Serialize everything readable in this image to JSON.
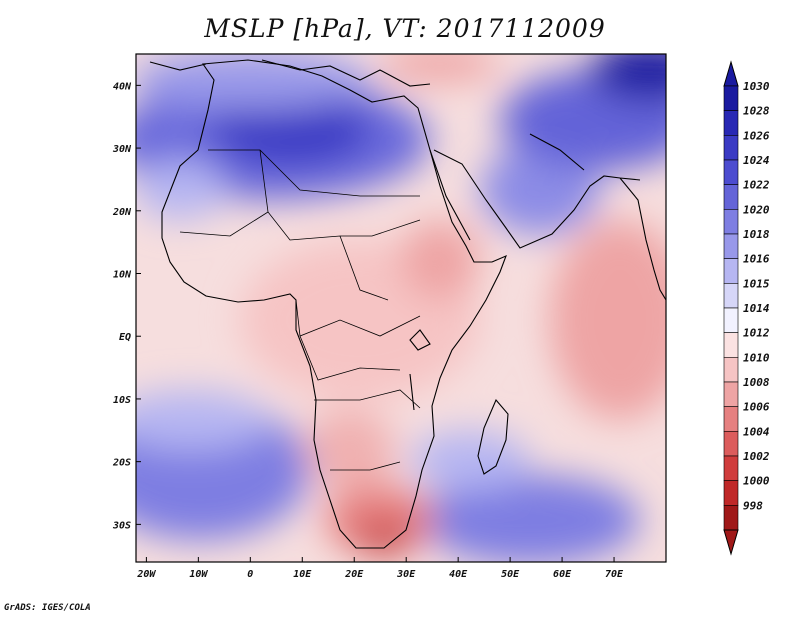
{
  "title": "MSLP [hPa], VT: 2017112009",
  "footer": "GrADS: IGES/COLA",
  "map": {
    "lon_range": [
      -22,
      80
    ],
    "lat_range": [
      -36,
      45
    ],
    "lat_labels": [
      "40N",
      "30N",
      "20N",
      "10N",
      "EQ",
      "10S",
      "20S",
      "30S"
    ],
    "lon_labels": [
      "20W",
      "10W",
      "0",
      "10E",
      "20E",
      "30E",
      "40E",
      "50E",
      "60E",
      "70E"
    ],
    "lat_values": [
      40,
      30,
      20,
      10,
      0,
      -10,
      -20,
      -30
    ],
    "lon_values": [
      -20,
      -10,
      0,
      10,
      20,
      30,
      40,
      50,
      60,
      70
    ]
  },
  "colorbar": {
    "levels": [
      "1030",
      "1028",
      "1026",
      "1024",
      "1022",
      "1020",
      "1018",
      "1016",
      "1015",
      "1014",
      "1012",
      "1010",
      "1008",
      "1006",
      "1004",
      "1002",
      "1000",
      "998"
    ],
    "colors": [
      "#1a1aa0",
      "#2828b4",
      "#3a3ac4",
      "#4c4cd0",
      "#6464d8",
      "#7e7ee2",
      "#9898ea",
      "#b6b6f2",
      "#d6d6f8",
      "#f2f2ff",
      "#fbe2e2",
      "#f6c4c4",
      "#eea4a4",
      "#e68080",
      "#dc5c5c",
      "#d03c3c",
      "#c02828",
      "#a01818"
    ]
  },
  "regions": [
    {
      "name": "high-north-africa",
      "lon": 0,
      "lat": 30,
      "value": 1026
    },
    {
      "name": "high-iran",
      "lon": 75,
      "lat": 43,
      "value": 1030
    },
    {
      "name": "high-south-atlantic",
      "lon": -10,
      "lat": -22,
      "value": 1022
    },
    {
      "name": "high-south-indian",
      "lon": 55,
      "lat": -30,
      "value": 1022
    },
    {
      "name": "low-central-africa",
      "lon": 25,
      "lat": 5,
      "value": 1010
    },
    {
      "name": "low-arabian-sea",
      "lon": 70,
      "lat": 5,
      "value": 1008
    },
    {
      "name": "low-south-africa",
      "lon": 25,
      "lat": -33,
      "value": 1004
    },
    {
      "name": "low-turkey",
      "lon": 30,
      "lat": 43,
      "value": 1008
    }
  ]
}
